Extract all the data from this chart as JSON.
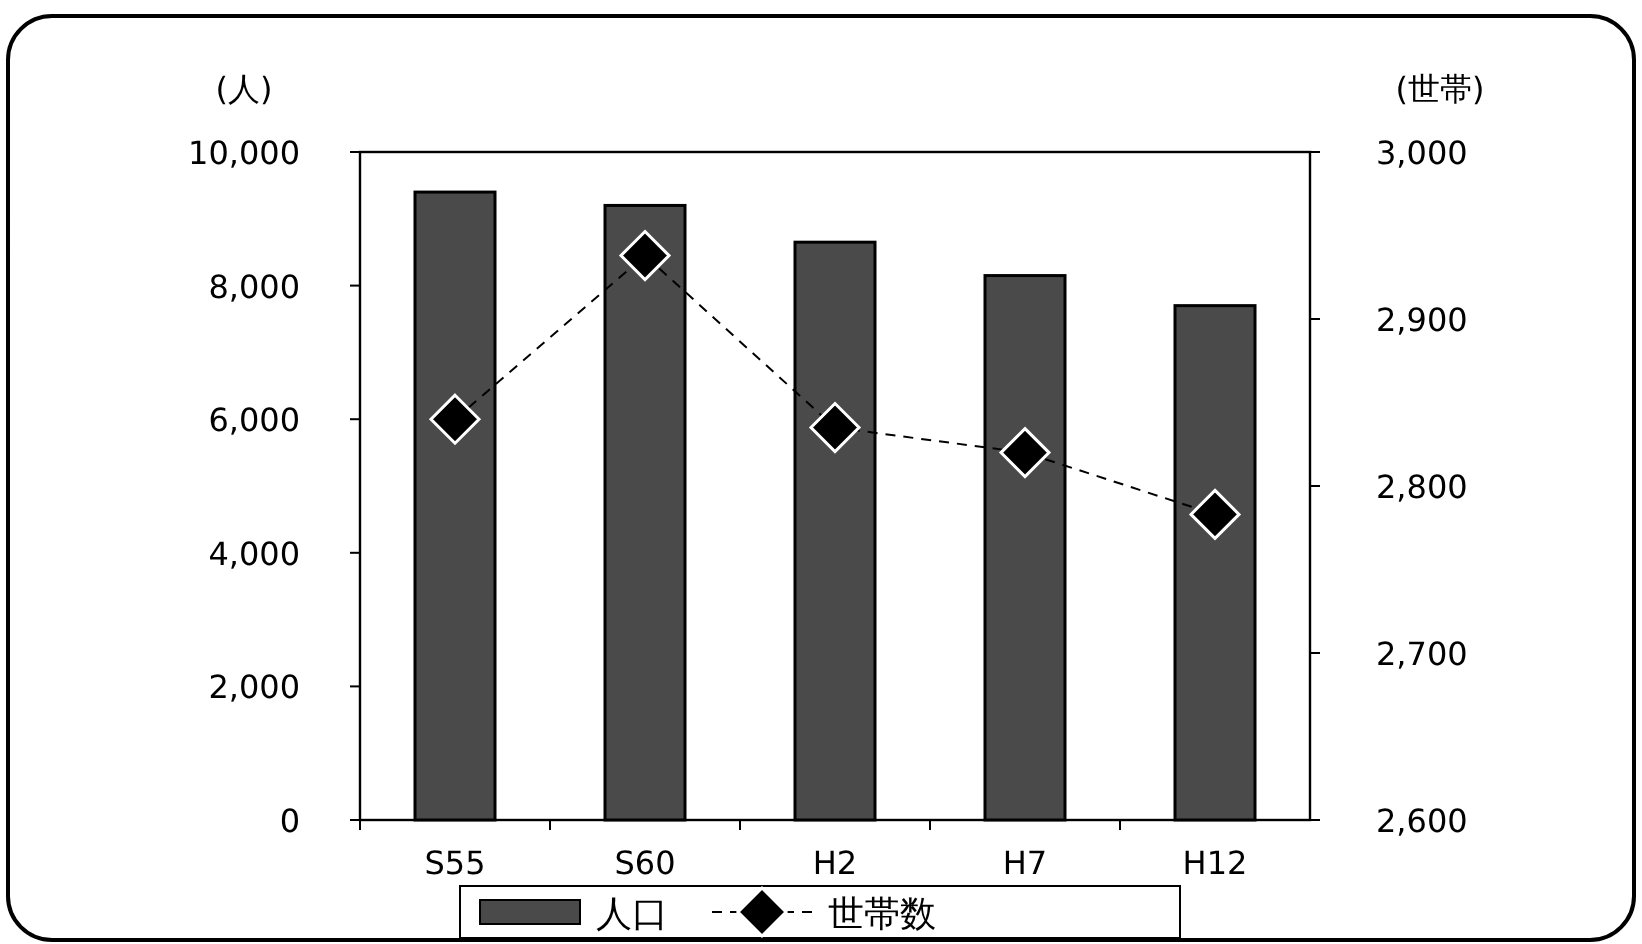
{
  "chart_data": {
    "type": "bar",
    "ylabel": "(人)",
    "y2label": "(世帯)",
    "categories": [
      "S55",
      "S60",
      "H2",
      "H7",
      "H12"
    ],
    "series": [
      {
        "name": "人口",
        "color": "#4a4a4a",
        "values": [
          9400,
          9200,
          8650,
          8150,
          7700
        ]
      },
      {
        "name": "世帯数",
        "type": "line",
        "axis": "y2",
        "color": "#000000",
        "marker": "diamond",
        "line_style": "dashed",
        "values": [
          2840,
          2938,
          2835,
          2820,
          2783
        ]
      }
    ],
    "ylim": [
      0,
      10000
    ],
    "yticks": [
      {
        "value": 0,
        "label": "0"
      },
      {
        "value": 2000,
        "label": "2,000"
      },
      {
        "value": 4000,
        "label": "4,000"
      },
      {
        "value": 6000,
        "label": "6,000"
      },
      {
        "value": 8000,
        "label": "8,000"
      },
      {
        "value": 10000,
        "label": "10,000"
      }
    ],
    "y2lim": [
      2600,
      3000
    ],
    "y2ticks": [
      {
        "value": 2600,
        "label": "2,600"
      },
      {
        "value": 2700,
        "label": "2,700"
      },
      {
        "value": 2800,
        "label": "2,800"
      },
      {
        "value": 2900,
        "label": "2,900"
      },
      {
        "value": 3000,
        "label": "3,000"
      }
    ],
    "legend": "bottom"
  }
}
